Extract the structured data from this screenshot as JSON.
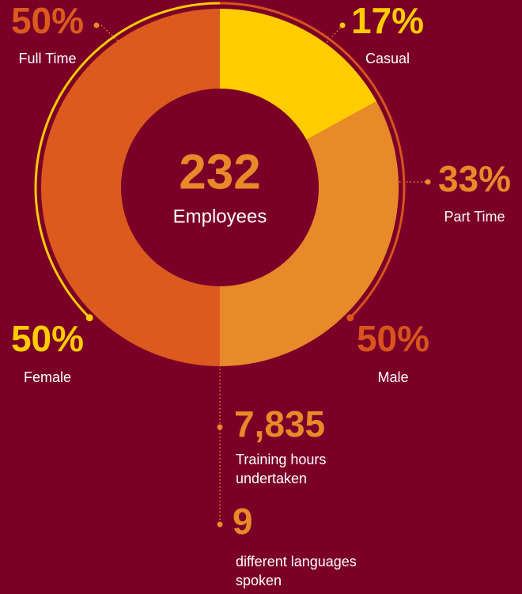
{
  "chart_data": {
    "type": "donut",
    "center_value": "232",
    "center_label": "Employees",
    "categories": [
      "Casual",
      "Part Time",
      "Full Time"
    ],
    "values": [
      17,
      33,
      50
    ],
    "value_labels": [
      "17%",
      "33%",
      "50%"
    ],
    "colors": [
      "#ffcc00",
      "#e8892a",
      "#dc5a1e"
    ],
    "ring": {
      "categories": [
        "Female",
        "Male"
      ],
      "values": [
        50,
        50
      ],
      "value_labels": [
        "50%",
        "50%"
      ],
      "colors": [
        "#ffcc00",
        "#d9541c"
      ]
    }
  },
  "highlights": [
    {
      "figure": "7,835",
      "text": [
        "Training hours",
        "undertaken"
      ]
    },
    {
      "figure": "9",
      "text": [
        "different languages",
        "spoken"
      ]
    }
  ]
}
